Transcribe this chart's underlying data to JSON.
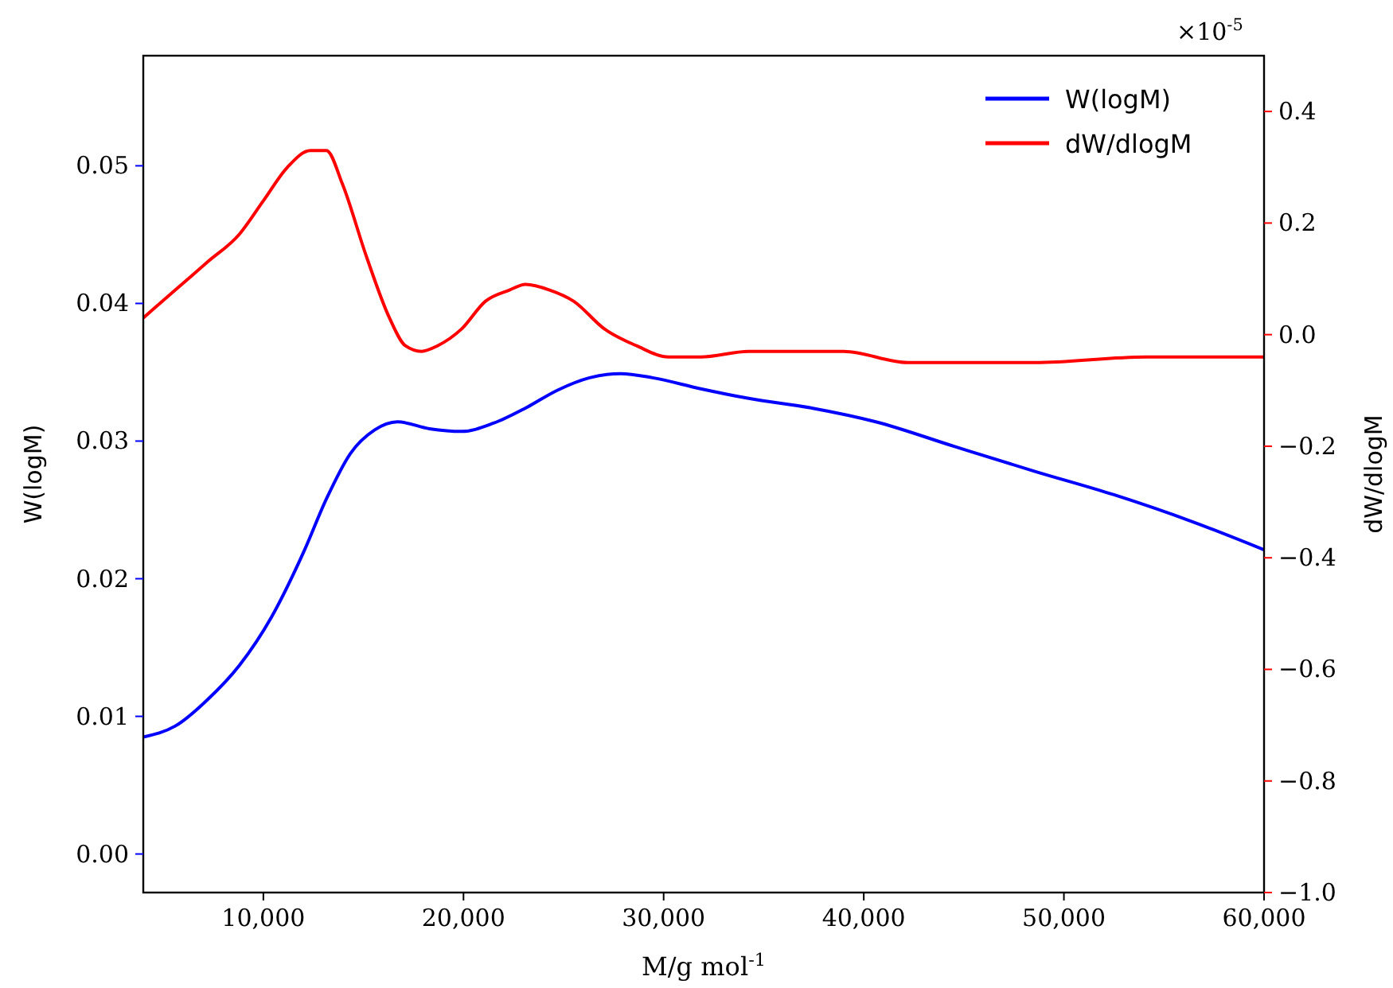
{
  "chart_data": {
    "type": "line",
    "xlabel": "M/g mol$^{-1}$",
    "ylabel": "W(logM)",
    "y2label": "dW/dlogM",
    "annotations": [
      "×10$^{-5}$"
    ],
    "xlim": [
      4000,
      60000
    ],
    "xticks": [
      {
        "value": 10000,
        "label": "10,000"
      },
      {
        "value": 20000,
        "label": "20,000"
      },
      {
        "value": 30000,
        "label": "30,000"
      },
      {
        "value": 40000,
        "label": "40,000"
      },
      {
        "value": 50000,
        "label": "50,000"
      },
      {
        "value": 60000,
        "label": "60,000"
      }
    ],
    "ylim": [
      -0.0028,
      0.058
    ],
    "yticks": [
      {
        "value": 0,
        "label": "0.00"
      },
      {
        "value": 0.01,
        "label": "0.01"
      },
      {
        "value": 0.02,
        "label": "0.02"
      },
      {
        "value": 0.03,
        "label": "0.03"
      },
      {
        "value": 0.04,
        "label": "0.04"
      },
      {
        "value": 0.05,
        "label": "0.05"
      }
    ],
    "y2lim": [
      -1.0,
      0.5
    ],
    "y2ticks": [
      {
        "value": -1.0,
        "label": "−1.0"
      },
      {
        "value": -0.8,
        "label": "−0.8"
      },
      {
        "value": -0.6,
        "label": "−0.6"
      },
      {
        "value": -0.4,
        "label": "−0.4"
      },
      {
        "value": -0.2,
        "label": "−0.2"
      },
      {
        "value": 0,
        "label": "0.0"
      },
      {
        "value": 0.2,
        "label": "0.2"
      },
      {
        "value": 0.4,
        "label": "0.4"
      }
    ],
    "legend": "top right",
    "grid": false,
    "marker": "none",
    "line_style": "solid",
    "series": [
      {
        "name": "W(logM)",
        "color": "#0000ff",
        "x": [
          4000,
          5600,
          7200,
          8800,
          10400,
          12000,
          13150,
          14350,
          15550,
          16700,
          18300,
          19900,
          21500,
          23100,
          24700,
          26300,
          27850,
          29450,
          31850,
          34250,
          37400,
          40600,
          44550,
          48550,
          52500,
          56500,
          60000
        ],
        "values": [
          0.0085,
          0.0093,
          0.0112,
          0.0137,
          0.0172,
          0.0219,
          0.0258,
          0.0291,
          0.0308,
          0.0314,
          0.0309,
          0.0307,
          0.0313,
          0.0324,
          0.0337,
          0.0346,
          0.0349,
          0.0346,
          0.0338,
          0.0331,
          0.0324,
          0.0314,
          0.0296,
          0.0278,
          0.0261,
          0.0241,
          0.0221
        ]
      },
      {
        "name": "dW/dlogM",
        "color": "#ff0000",
        "axis": "y2",
        "x": [
          4000,
          5600,
          7200,
          8800,
          10000,
          11200,
          12350,
          13150,
          13950,
          15150,
          16300,
          17100,
          17900,
          18700,
          19900,
          21100,
          22300,
          23100,
          24300,
          25500,
          27050,
          28650,
          30250,
          31850,
          34250,
          36600,
          39000,
          42200,
          48550,
          54100,
          60000
        ],
        "values": [
          0.03,
          0.08,
          0.13,
          0.18,
          0.24,
          0.3,
          0.33,
          0.33,
          0.27,
          0.14,
          0.03,
          -0.02,
          -0.03,
          -0.02,
          0.01,
          0.06,
          0.08,
          0.09,
          0.08,
          0.06,
          0.01,
          -0.02,
          -0.04,
          -0.04,
          -0.03,
          -0.03,
          -0.03,
          -0.05,
          -0.05,
          -0.04,
          -0.04
        ]
      }
    ]
  }
}
